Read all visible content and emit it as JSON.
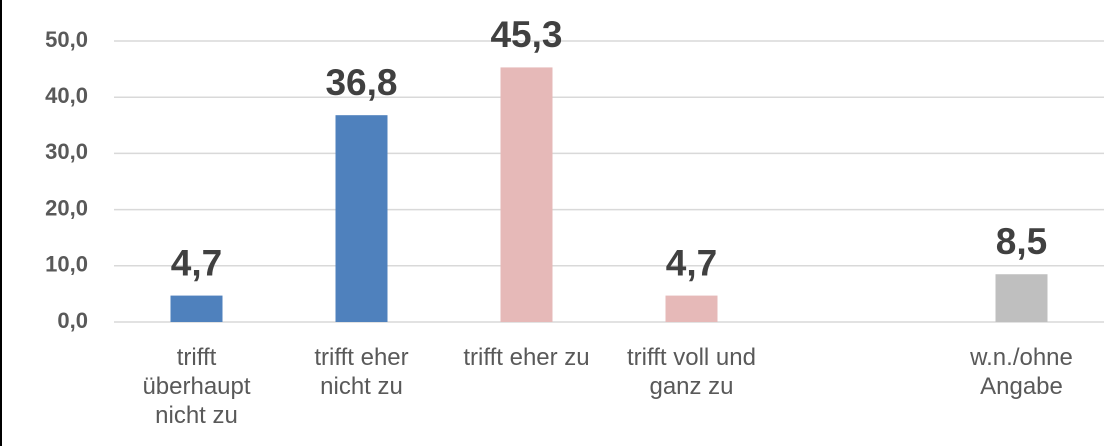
{
  "chart_data": {
    "type": "bar",
    "categories": [
      "trifft überhaupt nicht zu",
      "trifft eher nicht zu",
      "trifft eher zu",
      "trifft voll und ganz zu",
      null,
      "w.n./ohne Angabe"
    ],
    "values": [
      4.7,
      36.8,
      45.3,
      4.7,
      null,
      8.5
    ],
    "value_labels": [
      "4,7",
      "36,8",
      "45,3",
      "4,7",
      null,
      "8,5"
    ],
    "colors": [
      "#4f81bd",
      "#4f81bd",
      "#e6b9b8",
      "#e6b9b8",
      null,
      "#bfbfbf"
    ],
    "ylim": [
      0,
      50
    ],
    "yticks": [
      {
        "value": 0,
        "label": "0,0"
      },
      {
        "value": 10,
        "label": "10,0"
      },
      {
        "value": 20,
        "label": "20,0"
      },
      {
        "value": 30,
        "label": "30,0"
      },
      {
        "value": 40,
        "label": "40,0"
      },
      {
        "value": 50,
        "label": "50,0"
      }
    ],
    "grid": true
  }
}
